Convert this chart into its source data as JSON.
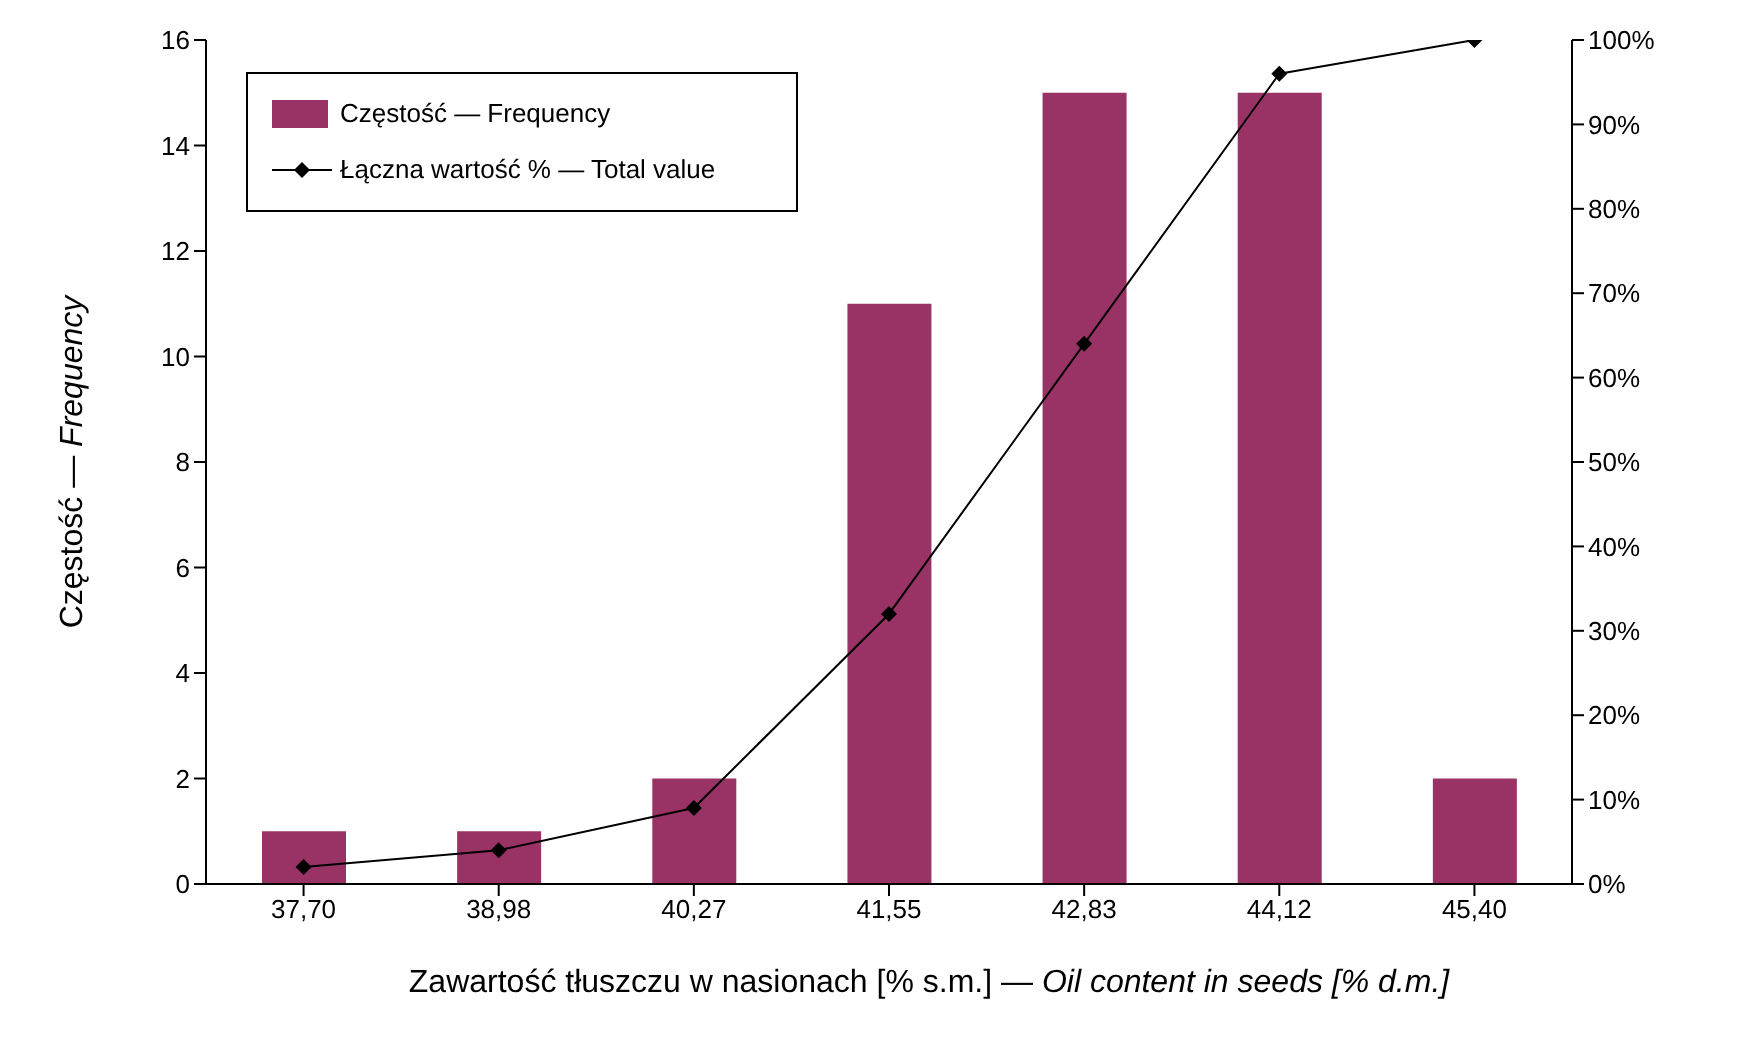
{
  "chart_data": {
    "type": "bar",
    "xlabel": "Zawartość tłuszczu w nasionach [% s.m.] — Oil content in seeds [% d.m.]",
    "ylabel": "Częstość — Frequency",
    "categories": [
      "37,70",
      "38,98",
      "40,27",
      "41,55",
      "42,83",
      "44,12",
      "45,40"
    ],
    "series": [
      {
        "name": "Częstość — Frequency",
        "color": "#993366",
        "values": [
          1,
          1,
          2,
          11,
          15,
          15,
          2
        ]
      },
      {
        "name": "Łączna wartość % — Total value",
        "type": "line",
        "axis": "y2",
        "color": "#000000",
        "marker": "diamond",
        "values": [
          2,
          4,
          9,
          32,
          64,
          96,
          100
        ]
      }
    ],
    "ylim": [
      0,
      16
    ],
    "yticks": [
      0,
      2,
      4,
      6,
      8,
      10,
      12,
      14,
      16
    ],
    "y2lim": [
      0,
      100
    ],
    "y2ticks": [
      {
        "value": 0,
        "label": "0%"
      },
      {
        "value": 10,
        "label": "10%"
      },
      {
        "value": 20,
        "label": "20%"
      },
      {
        "value": 30,
        "label": "30%"
      },
      {
        "value": 40,
        "label": "40%"
      },
      {
        "value": 50,
        "label": "50%"
      },
      {
        "value": 60,
        "label": "60%"
      },
      {
        "value": 70,
        "label": "70%"
      },
      {
        "value": 80,
        "label": "80%"
      },
      {
        "value": 90,
        "label": "90%"
      },
      {
        "value": 100,
        "label": "100%"
      }
    ],
    "legend": "top left",
    "grid": false
  }
}
